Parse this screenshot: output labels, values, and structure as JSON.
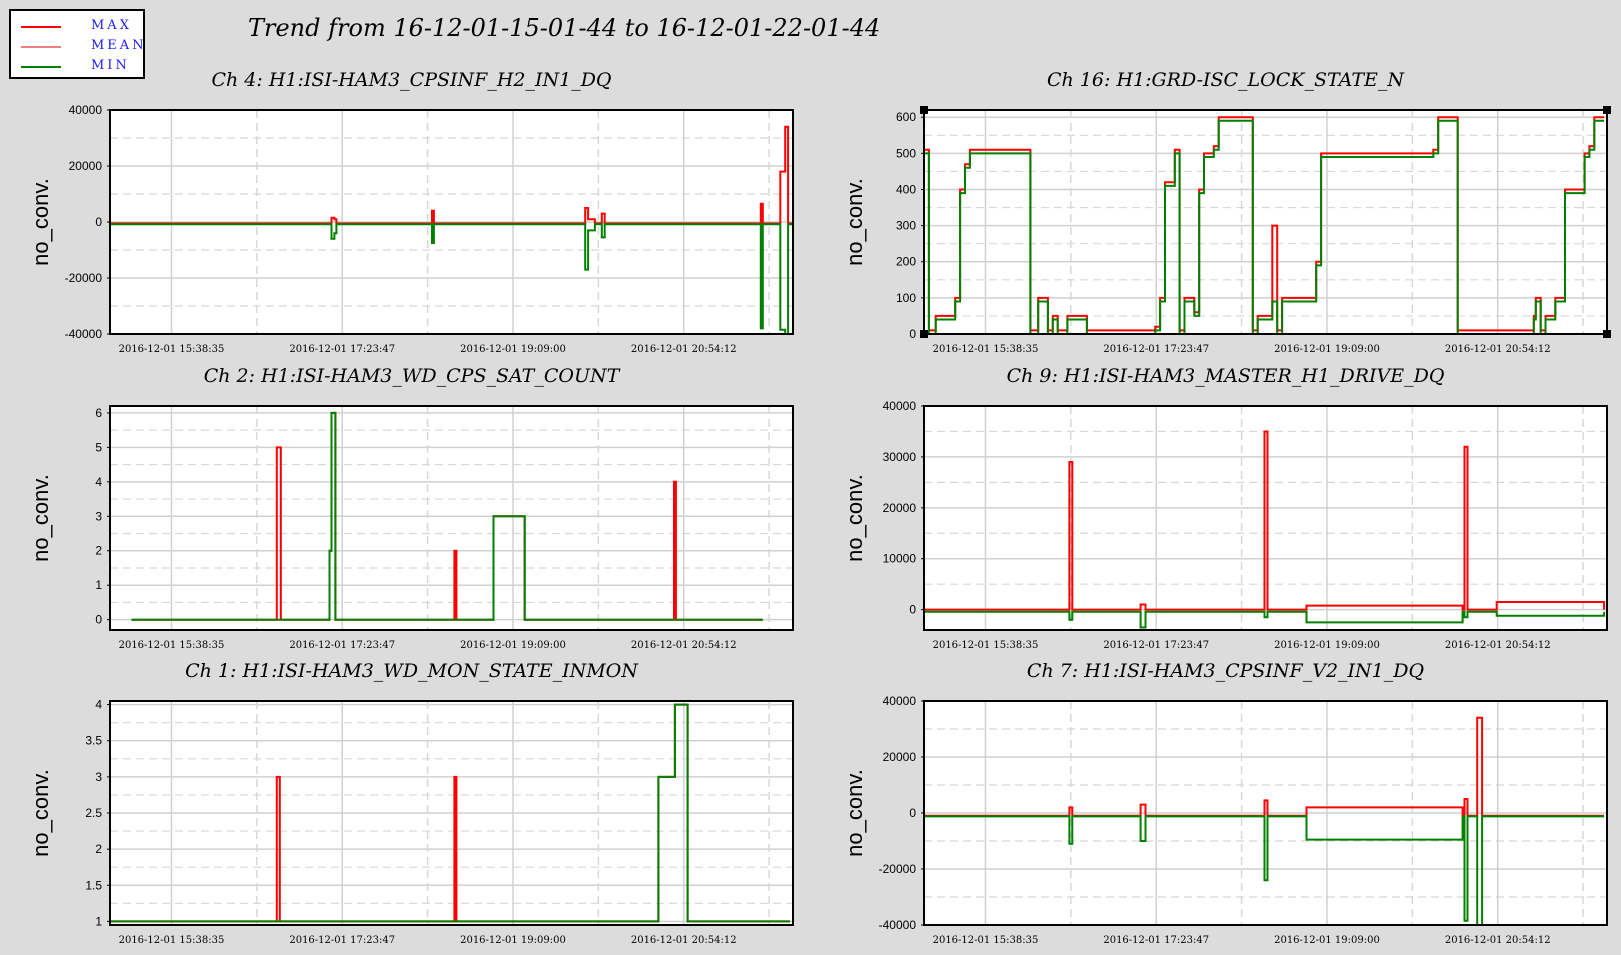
{
  "title": "Trend from 16-12-01-15-01-44 to 16-12-01-22-01-44",
  "legend": [
    {
      "label": "MAX",
      "color": "#ff0000"
    },
    {
      "label": "MEAN",
      "color": "#f08080"
    },
    {
      "label": "MIN",
      "color": "#008000"
    }
  ],
  "chart_data": [
    {
      "type": "line",
      "title": "Ch 4: H1:ISI-HAM3_CPSINF_H2_IN1_DQ",
      "ylabel": "no_conv.",
      "xlabel": "",
      "ylim": [
        -40000,
        40000
      ],
      "yticks": [
        "40000",
        "20000",
        "0",
        "-20000",
        "-40000"
      ],
      "xticks": [
        "2016-12-01 15:38:35",
        "2016-12-01 17:23:47",
        "2016-12-01 19:09:00",
        "2016-12-01 20:54:12"
      ],
      "x_range_hours": [
        15.03,
        22.03
      ],
      "series": [
        {
          "name": "MAX",
          "x": [
            15.03,
            17.28,
            17.3,
            17.33,
            17.35,
            18.3,
            18.33,
            18.35,
            19.87,
            19.9,
            19.93,
            20.0,
            20.05,
            20.07,
            20.1,
            20.12,
            20.15,
            21.65,
            21.7,
            21.72,
            21.75,
            21.9,
            21.95,
            21.98,
            22.03
          ],
          "values": [
            -500,
            -500,
            1500,
            1000,
            -500,
            -500,
            4000,
            -500,
            -500,
            5000,
            1000,
            -500,
            -500,
            3000,
            -500,
            -500,
            -500,
            -500,
            6500,
            -500,
            -500,
            18000,
            34000,
            -500,
            -500
          ]
        },
        {
          "name": "MIN",
          "x": [
            15.03,
            17.28,
            17.3,
            17.33,
            17.35,
            18.3,
            18.33,
            18.35,
            19.87,
            19.9,
            19.93,
            20.0,
            20.05,
            20.07,
            20.1,
            20.12,
            20.15,
            21.65,
            21.7,
            21.72,
            21.75,
            21.9,
            21.95,
            21.98,
            22.03
          ],
          "values": [
            -800,
            -800,
            -6000,
            -4000,
            -800,
            -800,
            -7500,
            -800,
            -800,
            -17000,
            -3000,
            -800,
            -800,
            -5500,
            -800,
            -800,
            -800,
            -800,
            -38000,
            -800,
            -800,
            -38500,
            -40000,
            -800,
            -800
          ]
        }
      ]
    },
    {
      "type": "line",
      "title": "Ch 16: H1:GRD-ISC_LOCK_STATE_N",
      "ylabel": "no_conv.",
      "xlabel": "",
      "ylim": [
        0,
        620
      ],
      "yticks": [
        "600",
        "500",
        "400",
        "300",
        "200",
        "100",
        "0"
      ],
      "xticks": [
        "2016-12-01 15:38:35",
        "2016-12-01 17:23:47",
        "2016-12-01 19:09:00",
        "2016-12-01 20:54:12"
      ],
      "x_range_hours": [
        15.03,
        22.03
      ],
      "series": [
        {
          "name": "MAX",
          "x": [
            15.03,
            15.06,
            15.08,
            15.15,
            15.2,
            15.35,
            15.4,
            15.45,
            15.5,
            15.6,
            15.65,
            16.1,
            16.12,
            16.2,
            16.3,
            16.35,
            16.4,
            16.45,
            16.5,
            16.7,
            16.75,
            16.8,
            17.4,
            17.45,
            17.5,
            17.6,
            17.65,
            17.7,
            17.8,
            17.85,
            17.9,
            18.0,
            18.05,
            18.3,
            18.4,
            18.45,
            18.6,
            18.65,
            18.7,
            19.05,
            19.1,
            19.12,
            19.2,
            19.25,
            19.3,
            19.35,
            19.5,
            19.6,
            19.65,
            19.7,
            19.8,
            19.85,
            19.9,
            19.95,
            20.0,
            20.05,
            20.1,
            20.2,
            20.25,
            20.3,
            20.4,
            20.5,
            21.25,
            21.28,
            21.3,
            21.35,
            21.4,
            21.5,
            21.6,
            21.8,
            21.85,
            21.9,
            21.95,
            22.0
          ],
          "values": [
            510,
            510,
            10,
            50,
            50,
            100,
            400,
            470,
            510,
            510,
            510,
            510,
            10,
            100,
            10,
            50,
            10,
            10,
            50,
            10,
            10,
            10,
            20,
            100,
            420,
            510,
            10,
            100,
            60,
            400,
            500,
            520,
            600,
            600,
            10,
            50,
            300,
            10,
            100,
            200,
            500,
            500,
            500,
            500,
            500,
            500,
            500,
            500,
            500,
            500,
            500,
            500,
            500,
            500,
            500,
            500,
            500,
            500,
            510,
            600,
            600,
            10,
            10,
            50,
            100,
            10,
            50,
            100,
            400,
            500,
            520,
            600,
            600,
            600
          ]
        },
        {
          "name": "MIN",
          "x": [
            15.03,
            15.06,
            15.08,
            15.15,
            15.2,
            15.35,
            15.4,
            15.45,
            15.5,
            15.6,
            15.65,
            16.1,
            16.12,
            16.2,
            16.3,
            16.35,
            16.4,
            16.45,
            16.5,
            16.7,
            16.75,
            16.8,
            17.4,
            17.45,
            17.5,
            17.6,
            17.65,
            17.7,
            17.8,
            17.85,
            17.9,
            18.0,
            18.05,
            18.3,
            18.4,
            18.45,
            18.6,
            18.65,
            18.7,
            19.05,
            19.1,
            19.12,
            19.2,
            19.25,
            19.3,
            19.35,
            19.5,
            19.6,
            19.65,
            19.7,
            19.8,
            19.85,
            19.9,
            19.95,
            20.0,
            20.05,
            20.1,
            20.2,
            20.25,
            20.3,
            20.4,
            20.5,
            21.25,
            21.28,
            21.3,
            21.35,
            21.4,
            21.5,
            21.6,
            21.8,
            21.85,
            21.9,
            21.95,
            22.0
          ],
          "values": [
            500,
            500,
            0,
            40,
            40,
            90,
            390,
            460,
            500,
            500,
            500,
            500,
            0,
            90,
            0,
            40,
            0,
            0,
            40,
            0,
            0,
            0,
            10,
            90,
            410,
            500,
            0,
            90,
            50,
            390,
            490,
            510,
            590,
            590,
            0,
            40,
            90,
            0,
            90,
            190,
            490,
            490,
            490,
            490,
            490,
            490,
            490,
            490,
            490,
            490,
            490,
            490,
            490,
            490,
            490,
            490,
            490,
            490,
            500,
            590,
            590,
            0,
            0,
            40,
            90,
            0,
            40,
            90,
            390,
            490,
            510,
            590,
            590,
            590
          ]
        }
      ]
    },
    {
      "type": "line",
      "title": "Ch 2: H1:ISI-HAM3_WD_CPS_SAT_COUNT",
      "ylabel": "no_conv.",
      "xlabel": "",
      "ylim": [
        -0.3,
        6.2
      ],
      "yticks": [
        "6",
        "5",
        "4",
        "3",
        "2",
        "1",
        "0"
      ],
      "xticks": [
        "2016-12-01 15:38:35",
        "2016-12-01 17:23:47",
        "2016-12-01 19:09:00",
        "2016-12-01 20:54:12"
      ],
      "x_range_hours": [
        15.03,
        22.03
      ],
      "series": [
        {
          "name": "MAX",
          "x": [
            15.25,
            16.73,
            16.74,
            16.77,
            16.78,
            17.27,
            17.28,
            17.3,
            17.32,
            17.34,
            17.36,
            17.38,
            18.55,
            18.56,
            18.58,
            18.95,
            18.96,
            19.27,
            19.28,
            20.8,
            20.81,
            20.83,
            21.72
          ],
          "values": [
            0,
            0,
            5,
            5,
            0,
            0,
            2,
            6,
            6,
            0,
            0,
            0,
            0,
            2,
            0,
            0,
            3,
            3,
            0,
            0,
            4,
            0,
            0
          ]
        },
        {
          "name": "MIN",
          "x": [
            15.25,
            17.27,
            17.28,
            17.3,
            17.32,
            17.34,
            17.36,
            18.95,
            18.96,
            19.27,
            19.28,
            21.72
          ],
          "values": [
            0,
            0,
            2,
            6,
            6,
            0,
            0,
            0,
            3,
            3,
            0,
            0
          ]
        }
      ]
    },
    {
      "type": "line",
      "title": "Ch 9: H1:ISI-HAM3_MASTER_H1_DRIVE_DQ",
      "ylabel": "no_conv.",
      "xlabel": "",
      "ylim": [
        -4000,
        40000
      ],
      "yticks": [
        "40000",
        "30000",
        "20000",
        "10000",
        "0"
      ],
      "xticks": [
        "2016-12-01 15:38:35",
        "2016-12-01 17:23:47",
        "2016-12-01 19:09:00",
        "2016-12-01 20:54:12"
      ],
      "x_range_hours": [
        15.03,
        22.03
      ],
      "series": [
        {
          "name": "MAX",
          "x": [
            15.03,
            16.5,
            16.52,
            16.55,
            17.2,
            17.25,
            17.3,
            18.5,
            18.52,
            18.55,
            18.9,
            18.95,
            20.55,
            20.57,
            20.6,
            20.85,
            20.9,
            22.0
          ],
          "values": [
            0,
            0,
            29000,
            0,
            0,
            1000,
            0,
            0,
            35000,
            0,
            0,
            800,
            0,
            32000,
            0,
            0,
            1500,
            0
          ]
        },
        {
          "name": "MIN",
          "x": [
            15.03,
            16.5,
            16.52,
            16.55,
            17.2,
            17.25,
            17.3,
            18.5,
            18.52,
            18.55,
            18.9,
            18.95,
            20.55,
            20.57,
            20.6,
            20.85,
            20.9,
            22.0
          ],
          "values": [
            -400,
            -400,
            -2000,
            -400,
            -400,
            -3500,
            -400,
            -400,
            -1500,
            -400,
            -400,
            -2500,
            -400,
            -1500,
            -400,
            -400,
            -1200,
            -400
          ]
        }
      ]
    },
    {
      "type": "line",
      "title": "Ch 1: H1:ISI-HAM3_WD_MON_STATE_INMON",
      "ylabel": "no_conv.",
      "xlabel": "",
      "ylim": [
        0.95,
        4.05
      ],
      "yticks": [
        "4",
        "3.5",
        "3",
        "2.5",
        "2",
        "1.5",
        "1"
      ],
      "xticks": [
        "2016-12-01 15:38:35",
        "2016-12-01 17:23:47",
        "2016-12-01 19:09:00",
        "2016-12-01 20:54:12"
      ],
      "x_range_hours": [
        15.03,
        22.03
      ],
      "series": [
        {
          "name": "MAX",
          "x": [
            15.03,
            16.73,
            16.74,
            16.77,
            18.55,
            18.56,
            18.58,
            20.63,
            20.65,
            20.8,
            20.82,
            20.93,
            20.95,
            22.0
          ],
          "values": [
            1,
            1,
            3,
            1,
            1,
            3,
            1,
            1,
            3,
            3,
            4,
            4,
            1,
            1
          ]
        },
        {
          "name": "MIN",
          "x": [
            15.03,
            20.63,
            20.65,
            20.8,
            20.82,
            20.93,
            20.95,
            22.0
          ],
          "values": [
            1,
            1,
            3,
            3,
            4,
            4,
            1,
            1
          ]
        }
      ]
    },
    {
      "type": "line",
      "title": "Ch 7: H1:ISI-HAM3_CPSINF_V2_IN1_DQ",
      "ylabel": "no_conv.",
      "xlabel": "",
      "ylim": [
        -40000,
        40000
      ],
      "yticks": [
        "40000",
        "20000",
        "0",
        "-20000",
        "-40000"
      ],
      "xticks": [
        "2016-12-01 15:38:35",
        "2016-12-01 17:23:47",
        "2016-12-01 19:09:00",
        "2016-12-01 20:54:12"
      ],
      "x_range_hours": [
        15.03,
        22.03
      ],
      "series": [
        {
          "name": "MAX",
          "x": [
            15.03,
            16.5,
            16.52,
            16.55,
            17.2,
            17.25,
            17.3,
            18.5,
            18.52,
            18.55,
            18.9,
            18.95,
            20.55,
            20.57,
            20.6,
            20.65,
            20.7,
            20.75,
            22.0
          ],
          "values": [
            -1000,
            -1000,
            2000,
            -1000,
            -1000,
            3000,
            -1000,
            -1000,
            4500,
            -1000,
            -1000,
            2000,
            -1000,
            5000,
            -1000,
            -1000,
            34000,
            -1000,
            -1000
          ]
        },
        {
          "name": "MIN",
          "x": [
            15.03,
            16.5,
            16.52,
            16.55,
            17.2,
            17.25,
            17.3,
            18.5,
            18.52,
            18.55,
            18.9,
            18.95,
            20.55,
            20.57,
            20.6,
            20.65,
            20.7,
            20.75,
            22.0
          ],
          "values": [
            -1200,
            -1200,
            -11000,
            -1200,
            -1200,
            -10000,
            -1200,
            -1200,
            -24000,
            -1200,
            -1200,
            -9500,
            -1200,
            -38500,
            -1200,
            -1200,
            -40000,
            -1200,
            -1200
          ]
        }
      ]
    }
  ]
}
